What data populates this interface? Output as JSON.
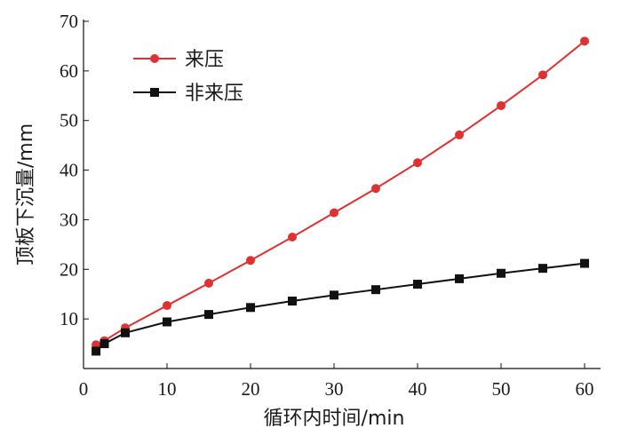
{
  "chart_data": {
    "type": "line",
    "title": "",
    "xlabel": "循环内时间/min",
    "ylabel": "顶板下沉量/mm",
    "xlim": [
      0,
      60
    ],
    "ylim": [
      0,
      70
    ],
    "xticks": [
      0,
      10,
      20,
      30,
      40,
      50,
      60
    ],
    "yticks": [
      10,
      20,
      30,
      40,
      50,
      60,
      70
    ],
    "legend_position": "top-left",
    "grid": false,
    "series": [
      {
        "name": "来压",
        "color": "#e03030",
        "marker": "circle",
        "x": [
          1.5,
          2.5,
          5,
          10,
          15,
          20,
          25,
          30,
          35,
          40,
          45,
          50,
          55,
          60
        ],
        "y": [
          4.8,
          5.6,
          8.2,
          12.7,
          17.2,
          21.8,
          26.5,
          31.4,
          36.3,
          41.5,
          47.1,
          53.0,
          59.2,
          66.0
        ]
      },
      {
        "name": "非来压",
        "color": "#111111",
        "marker": "square",
        "x": [
          1.5,
          2.5,
          5,
          10,
          15,
          20,
          25,
          30,
          35,
          40,
          45,
          50,
          55,
          60
        ],
        "y": [
          3.5,
          5.0,
          7.2,
          9.4,
          10.9,
          12.3,
          13.6,
          14.8,
          15.9,
          17.0,
          18.1,
          19.2,
          20.2,
          21.2
        ]
      }
    ]
  }
}
